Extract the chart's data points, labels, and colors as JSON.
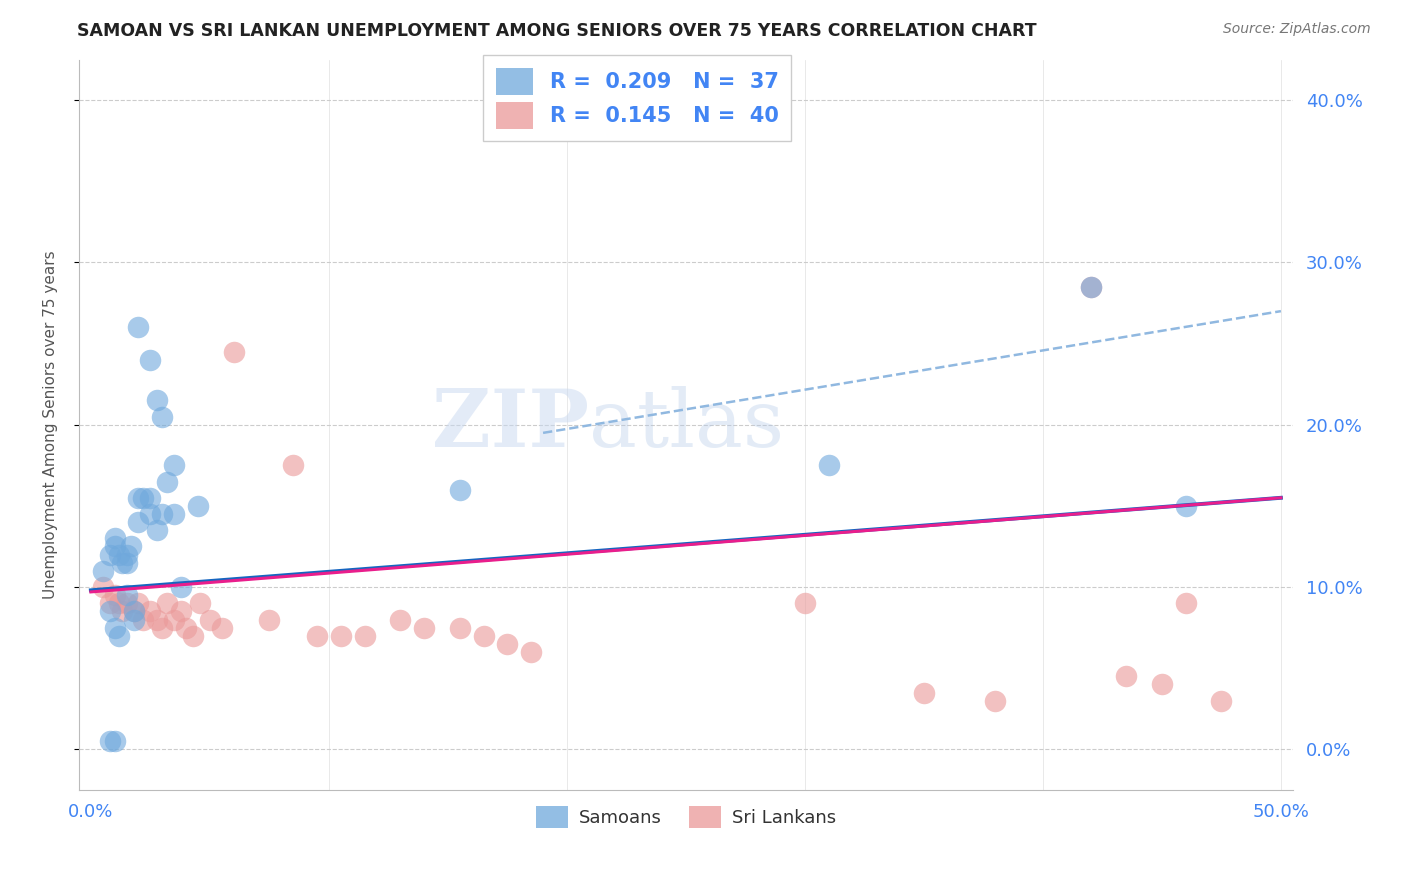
{
  "title": "SAMOAN VS SRI LANKAN UNEMPLOYMENT AMONG SENIORS OVER 75 YEARS CORRELATION CHART",
  "source": "Source: ZipAtlas.com",
  "ylabel": "Unemployment Among Seniors over 75 years",
  "xlabel": "",
  "xlim": [
    -0.005,
    0.505
  ],
  "ylim": [
    -0.025,
    0.425
  ],
  "xticks": [
    0.0,
    0.1,
    0.2,
    0.3,
    0.4,
    0.5
  ],
  "yticks": [
    0.0,
    0.1,
    0.2,
    0.3,
    0.4
  ],
  "ytick_labels_right": [
    "0.0%",
    "10.0%",
    "20.0%",
    "30.0%",
    "40.0%"
  ],
  "xtick_labels": [
    "0.0%",
    "",
    "",
    "",
    "",
    "50.0%"
  ],
  "samoan_color": "#6fa8dc",
  "srilanka_color": "#ea9999",
  "samoan_line_color": "#1565c0",
  "srilanka_line_color": "#e91e8c",
  "trend_dashed_color": "#90b8e0",
  "R_samoan": 0.209,
  "N_samoan": 37,
  "R_srilanka": 0.145,
  "N_srilanka": 40,
  "samoan_x": [
    0.005,
    0.008,
    0.01,
    0.01,
    0.012,
    0.013,
    0.015,
    0.015,
    0.017,
    0.02,
    0.02,
    0.022,
    0.025,
    0.025,
    0.028,
    0.03,
    0.032,
    0.035,
    0.008,
    0.01,
    0.012,
    0.015,
    0.018,
    0.02,
    0.025,
    0.028,
    0.03,
    0.035,
    0.038,
    0.045,
    0.008,
    0.01,
    0.018,
    0.155,
    0.31,
    0.42,
    0.46
  ],
  "samoan_y": [
    0.11,
    0.12,
    0.13,
    0.125,
    0.12,
    0.115,
    0.12,
    0.115,
    0.125,
    0.14,
    0.155,
    0.155,
    0.155,
    0.145,
    0.135,
    0.145,
    0.165,
    0.175,
    0.085,
    0.075,
    0.07,
    0.095,
    0.085,
    0.26,
    0.24,
    0.215,
    0.205,
    0.145,
    0.1,
    0.15,
    0.005,
    0.005,
    0.08,
    0.16,
    0.175,
    0.285,
    0.15
  ],
  "srilanka_x": [
    0.005,
    0.008,
    0.01,
    0.012,
    0.013,
    0.015,
    0.018,
    0.02,
    0.022,
    0.025,
    0.028,
    0.03,
    0.032,
    0.035,
    0.038,
    0.04,
    0.043,
    0.046,
    0.05,
    0.055,
    0.06,
    0.075,
    0.085,
    0.095,
    0.105,
    0.115,
    0.13,
    0.14,
    0.155,
    0.165,
    0.175,
    0.185,
    0.3,
    0.35,
    0.38,
    0.42,
    0.435,
    0.45,
    0.46,
    0.475
  ],
  "srilanka_y": [
    0.1,
    0.09,
    0.095,
    0.09,
    0.085,
    0.09,
    0.085,
    0.09,
    0.08,
    0.085,
    0.08,
    0.075,
    0.09,
    0.08,
    0.085,
    0.075,
    0.07,
    0.09,
    0.08,
    0.075,
    0.245,
    0.08,
    0.175,
    0.07,
    0.07,
    0.07,
    0.08,
    0.075,
    0.075,
    0.07,
    0.065,
    0.06,
    0.09,
    0.035,
    0.03,
    0.285,
    0.045,
    0.04,
    0.09,
    0.03
  ],
  "blue_line_x": [
    0.0,
    0.5
  ],
  "blue_line_y": [
    0.098,
    0.155
  ],
  "pink_line_x": [
    0.0,
    0.5
  ],
  "pink_line_y": [
    0.097,
    0.155
  ],
  "dashed_line_x": [
    0.19,
    0.5
  ],
  "dashed_line_y": [
    0.195,
    0.27
  ],
  "watermark_zip": "ZIP",
  "watermark_atlas": "atlas",
  "legend_samoan": "Samoans",
  "legend_srilanka": "Sri Lankans",
  "background_color": "#ffffff",
  "plot_bg_color": "#ffffff"
}
